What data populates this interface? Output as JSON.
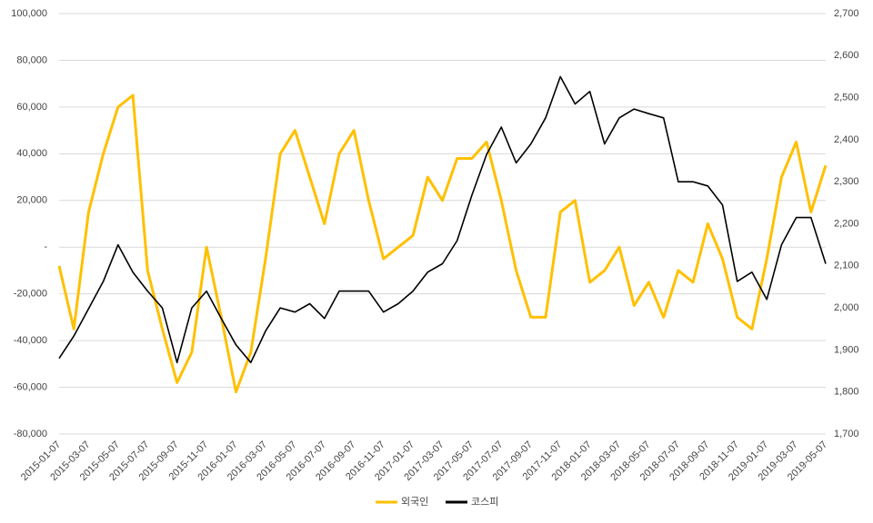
{
  "chart_data": {
    "type": "line",
    "categories": [
      "2015-01-07",
      null,
      "2015-03-07",
      null,
      "2015-05-07",
      null,
      "2015-07-07",
      null,
      "2015-09-07",
      null,
      "2015-11-07",
      null,
      "2016-01-07",
      null,
      "2016-03-07",
      null,
      "2016-05-07",
      null,
      "2016-07-07",
      null,
      "2016-09-07",
      null,
      "2016-11-07",
      null,
      "2017-01-07",
      null,
      "2017-03-07",
      null,
      "2017-05-07",
      null,
      "2017-07-07",
      null,
      "2017-09-07",
      null,
      "2017-11-07",
      null,
      "2018-01-07",
      null,
      "2018-03-07",
      null,
      "2018-05-07",
      null,
      "2018-07-07",
      null,
      "2018-09-07",
      null,
      "2018-11-07",
      null,
      "2019-01-07",
      null,
      "2019-03-07",
      null,
      "2019-05-07"
    ],
    "series": [
      {
        "name": "외국인",
        "color": "#ffc000",
        "values": [
          -8000,
          -35000,
          15000,
          40000,
          60000,
          65000,
          -10000,
          -35000,
          -58000,
          -45000,
          0,
          -30000,
          -62000,
          -45000,
          -5000,
          40000,
          50000,
          30000,
          10000,
          40000,
          50000,
          20000,
          -5000,
          0,
          5000,
          30000,
          20000,
          38000,
          38000,
          45000,
          20000,
          -10000,
          -30000,
          -30000,
          15000,
          20000,
          -15000,
          -10000,
          0,
          -25000,
          -15000,
          -30000,
          -10000,
          -15000,
          10000,
          -5000,
          -30000,
          -35000,
          -5000,
          30000,
          45000,
          15000,
          35000
        ]
      },
      {
        "name": "코스피",
        "color": "#000000",
        "axis": "y2",
        "values": [
          1880,
          1933,
          1998,
          2063,
          2150,
          2085,
          2040,
          2000,
          1870,
          2000,
          2040,
          1975,
          1912,
          1870,
          1945,
          2000,
          1990,
          2010,
          1975,
          2040,
          2040,
          2040,
          1990,
          2010,
          2040,
          2085,
          2105,
          2160,
          2268,
          2365,
          2430,
          2345,
          2390,
          2452,
          2550,
          2485,
          2515,
          2390,
          2452,
          2473,
          2462,
          2452,
          2300,
          2300,
          2290,
          2245,
          2063,
          2085,
          2020,
          2150,
          2215,
          2215,
          2105
        ]
      }
    ],
    "ylim": [
      -80000,
      100000
    ],
    "yticks": [
      {
        "value": -80000,
        "label": "-80,000"
      },
      {
        "value": -60000,
        "label": "-60,000"
      },
      {
        "value": -40000,
        "label": "-40,000"
      },
      {
        "value": -20000,
        "label": "-20,000"
      },
      {
        "value": 0,
        "label": "-"
      },
      {
        "value": 20000,
        "label": "20,000"
      },
      {
        "value": 40000,
        "label": "40,000"
      },
      {
        "value": 60000,
        "label": "60,000"
      },
      {
        "value": 80000,
        "label": "80,000"
      },
      {
        "value": 100000,
        "label": "100,000"
      }
    ],
    "y2lim": [
      1700,
      2700
    ],
    "y2ticks": [
      {
        "value": 1700,
        "label": "1,700"
      },
      {
        "value": 1800,
        "label": "1,800"
      },
      {
        "value": 1900,
        "label": "1,900"
      },
      {
        "value": 2000,
        "label": "2,000"
      },
      {
        "value": 2100,
        "label": "2,100"
      },
      {
        "value": 2200,
        "label": "2,200"
      },
      {
        "value": 2300,
        "label": "2,300"
      },
      {
        "value": 2400,
        "label": "2,400"
      },
      {
        "value": 2500,
        "label": "2,500"
      },
      {
        "value": 2600,
        "label": "2,600"
      },
      {
        "value": 2700,
        "label": "2,700"
      }
    ],
    "grid": true,
    "legend": "bottom"
  }
}
